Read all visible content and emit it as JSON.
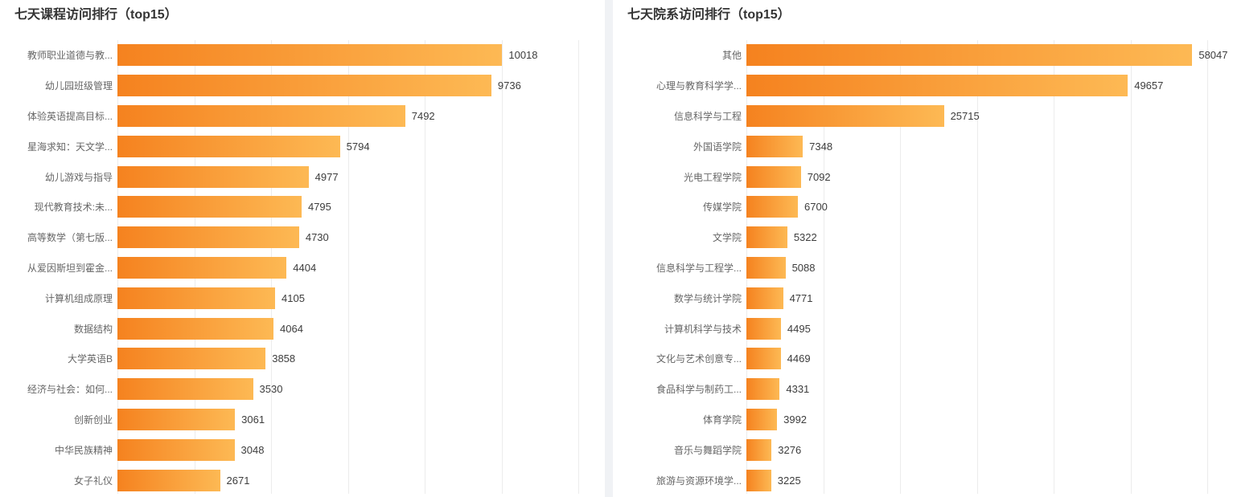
{
  "colors": {
    "bar_gradient_start": "#f5821f",
    "bar_gradient_end": "#fdb954",
    "gridline": "#ececec",
    "divider": "#f0f2f5",
    "title_text": "#333333",
    "category_text": "#666666",
    "value_text": "#3d3d3d"
  },
  "chart_data": [
    {
      "type": "bar",
      "orientation": "horizontal",
      "title": "七天课程访问排行（top15）",
      "legend": "none",
      "grid_on": true,
      "xlim": [
        0,
        12000
      ],
      "grid_interval": 2000,
      "categories": [
        "教师职业道德与教...",
        "幼儿园班级管理",
        "体验英语提高目标...",
        "星海求知：天文学...",
        "幼儿游戏与指导",
        "现代教育技术:未...",
        "高等数学（第七版...",
        "从爱因斯坦到霍金...",
        "计算机组成原理",
        "数据结构",
        "大学英语B",
        "经济与社会：如何...",
        "创新创业",
        "中华民族精神",
        "女子礼仪"
      ],
      "values": [
        10018,
        9736,
        7492,
        5794,
        4977,
        4795,
        4730,
        4404,
        4105,
        4064,
        3858,
        3530,
        3061,
        3048,
        2671
      ]
    },
    {
      "type": "bar",
      "orientation": "horizontal",
      "title": "七天院系访问排行（top15）",
      "legend": "none",
      "grid_on": true,
      "xlim": [
        0,
        60000
      ],
      "grid_interval": 10000,
      "categories": [
        "其他",
        "心理与教育科学学...",
        "信息科学与工程",
        "外国语学院",
        "光电工程学院",
        "传媒学院",
        "文学院",
        "信息科学与工程学...",
        "数学与统计学院",
        "计算机科学与技术",
        "文化与艺术创意专...",
        "食品科学与制药工...",
        "体育学院",
        "音乐与舞蹈学院",
        "旅游与资源环境学..."
      ],
      "values": [
        58047,
        49657,
        25715,
        7348,
        7092,
        6700,
        5322,
        5088,
        4771,
        4495,
        4469,
        4331,
        3992,
        3276,
        3225
      ]
    }
  ]
}
